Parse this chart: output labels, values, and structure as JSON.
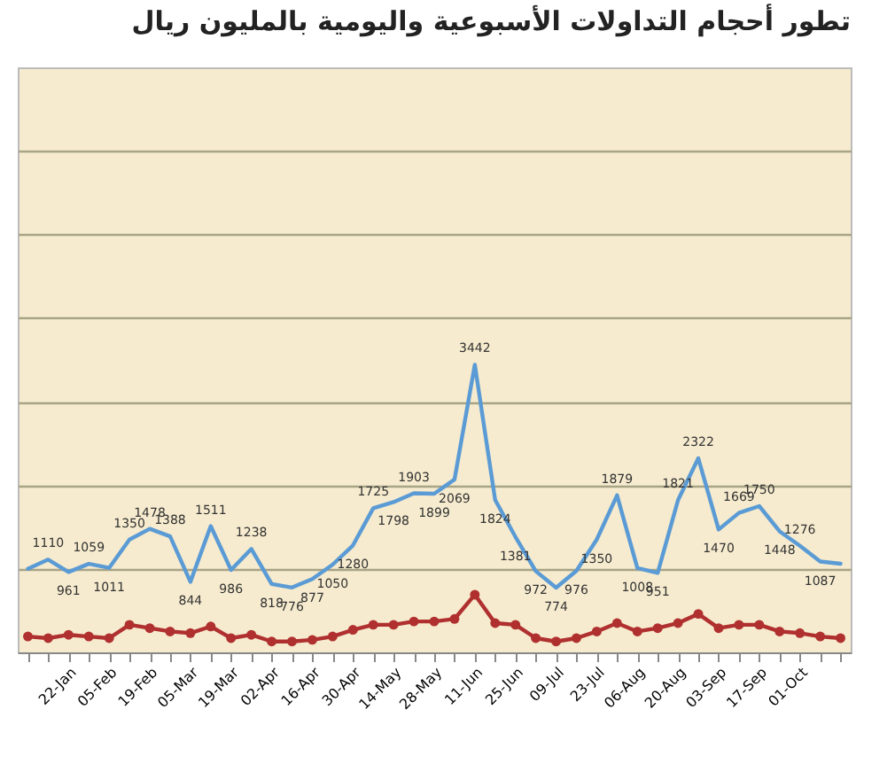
{
  "chart_data": {
    "type": "line",
    "title": "تطور أحجام التداولات الأسبوعية واليومية بالمليون ريال",
    "categories": [
      null,
      null,
      "22-Jan",
      null,
      "05-Feb",
      null,
      "19-Feb",
      null,
      "05-Mar",
      null,
      "19-Mar",
      null,
      "02-Apr",
      null,
      "16-Apr",
      null,
      "30-Apr",
      null,
      "14-May",
      null,
      "28-May",
      null,
      "11-Jun",
      null,
      "25-Jun",
      null,
      "09-Jul",
      null,
      "23-Jul",
      null,
      "06-Aug",
      null,
      "20-Aug",
      null,
      "03-Sep",
      null,
      "17-Sep",
      null,
      "01-Oct",
      null,
      null
    ],
    "series": [
      {
        "color": "#5b9bd5",
        "marker": "none",
        "values": [
          1000,
          1110,
          961,
          1059,
          1011,
          1350,
          1478,
          1388,
          844,
          1511,
          986,
          1238,
          818,
          776,
          877,
          1050,
          1280,
          1725,
          1798,
          1903,
          1899,
          2069,
          3442,
          1824,
          1381,
          972,
          774,
          976,
          1350,
          1879,
          1008,
          951,
          1821,
          2322,
          1470,
          1669,
          1750,
          1448,
          1276,
          1087,
          1060
        ],
        "value_labels": [
          null,
          "1110",
          "961",
          "1059",
          "1011",
          "1350",
          "1478",
          "1388",
          "844",
          "1511",
          "986",
          "1238",
          "818",
          "776",
          "877",
          "1050",
          "1280",
          "1725",
          "1798",
          "1903",
          "1899",
          "2069",
          "3442",
          "1824",
          "1381",
          "972",
          "774",
          "976",
          "1350",
          "1879",
          "1008",
          "951",
          "1821",
          "2322",
          "1470",
          "1669",
          "1750",
          "1448",
          "1276",
          "1087",
          null
        ]
      },
      {
        "color": "#b03030",
        "marker": "circle",
        "values": [
          190,
          170,
          210,
          190,
          170,
          330,
          290,
          250,
          230,
          310,
          170,
          210,
          130,
          130,
          150,
          190,
          270,
          330,
          330,
          370,
          370,
          400,
          690,
          350,
          330,
          170,
          130,
          170,
          250,
          350,
          250,
          290,
          350,
          460,
          290,
          330,
          330,
          250,
          230,
          190,
          170
        ]
      }
    ],
    "ylim": [
      0,
      7000
    ],
    "yticks": [
      {
        "value": 1000,
        "label": null
      },
      {
        "value": 2000,
        "label": null
      },
      {
        "value": 3000,
        "label": null
      },
      {
        "value": 4000,
        "label": null
      },
      {
        "value": 5000,
        "label": null
      },
      {
        "value": 6000,
        "label": null
      }
    ],
    "tick_labels": "x",
    "grid": "y",
    "line_style": "solid"
  }
}
